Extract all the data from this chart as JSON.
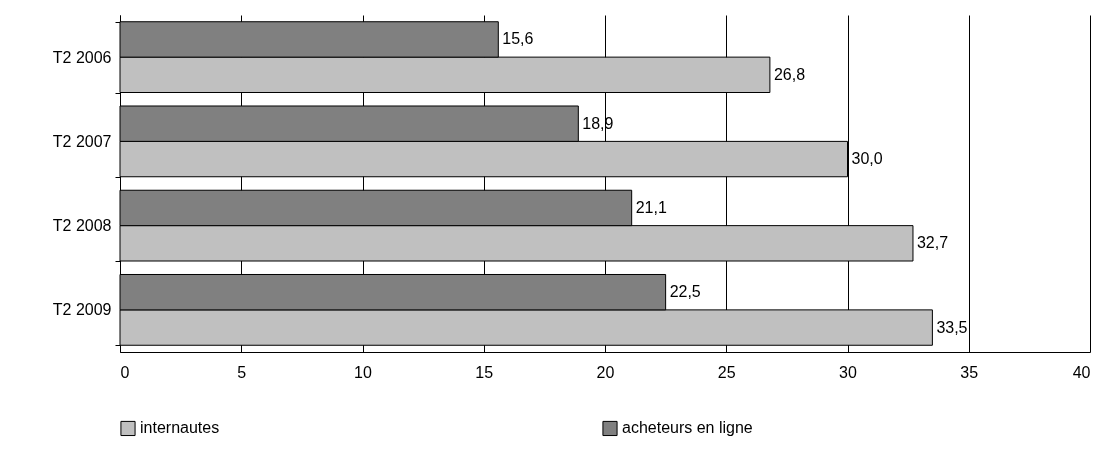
{
  "chart_data": {
    "type": "bar",
    "orientation": "horizontal",
    "categories": [
      "T2 2006",
      "T2 2007",
      "T2 2008",
      "T2 2009"
    ],
    "series": [
      {
        "name": "internautes",
        "color": "#c0c0c0",
        "values": [
          26.8,
          30.0,
          32.7,
          33.5
        ],
        "value_labels": [
          "26,8",
          "30,0",
          "32,7",
          "33,5"
        ]
      },
      {
        "name": "acheteurs en ligne",
        "color": "#808080",
        "values": [
          15.6,
          18.9,
          21.1,
          22.5
        ],
        "value_labels": [
          "15,6",
          "18,9",
          "21,1",
          "22,5"
        ]
      }
    ],
    "xlim": [
      0,
      40
    ],
    "xticks": [
      0,
      5,
      10,
      15,
      20,
      25,
      30,
      35,
      40
    ],
    "grid": "x",
    "legend": "bottom"
  }
}
